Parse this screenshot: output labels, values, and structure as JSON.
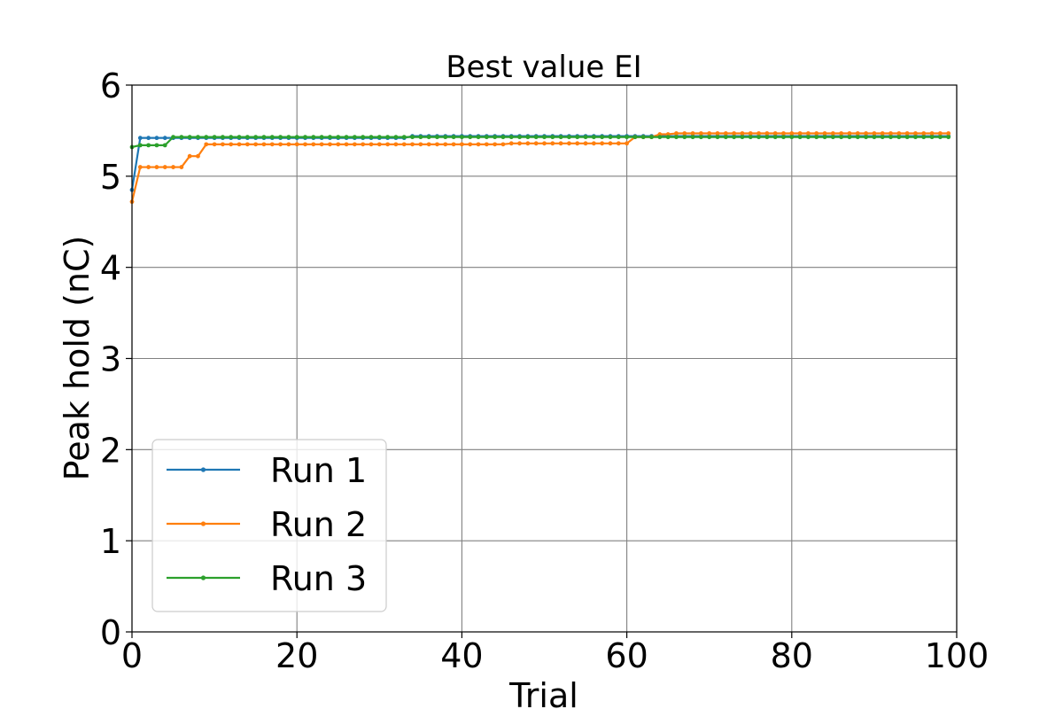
{
  "chart_data": {
    "type": "line",
    "title": "Best value EI",
    "xlabel": "Trial",
    "ylabel": "Peak hold (nC)",
    "xlim": [
      0,
      100
    ],
    "ylim": [
      0,
      6
    ],
    "xticks": [
      0,
      20,
      40,
      60,
      80,
      100
    ],
    "yticks": [
      0,
      1,
      2,
      3,
      4,
      5,
      6
    ],
    "grid": true,
    "legend": "lower-left",
    "markers": true,
    "series": [
      {
        "name": "Run 1",
        "color": "#1f77b4",
        "steps": [
          [
            0,
            4.85
          ],
          [
            1,
            5.42
          ],
          [
            34,
            5.44
          ]
        ],
        "x_end": 99
      },
      {
        "name": "Run 2",
        "color": "#ff7f0e",
        "steps": [
          [
            0,
            4.72
          ],
          [
            1,
            5.1
          ],
          [
            7,
            5.22
          ],
          [
            9,
            5.35
          ],
          [
            46,
            5.36
          ],
          [
            61,
            5.43
          ],
          [
            64,
            5.46
          ],
          [
            66,
            5.47
          ]
        ],
        "x_end": 99
      },
      {
        "name": "Run 3",
        "color": "#2ca02c",
        "steps": [
          [
            0,
            5.32
          ],
          [
            1,
            5.34
          ],
          [
            5,
            5.43
          ]
        ],
        "x_end": 99
      }
    ]
  }
}
